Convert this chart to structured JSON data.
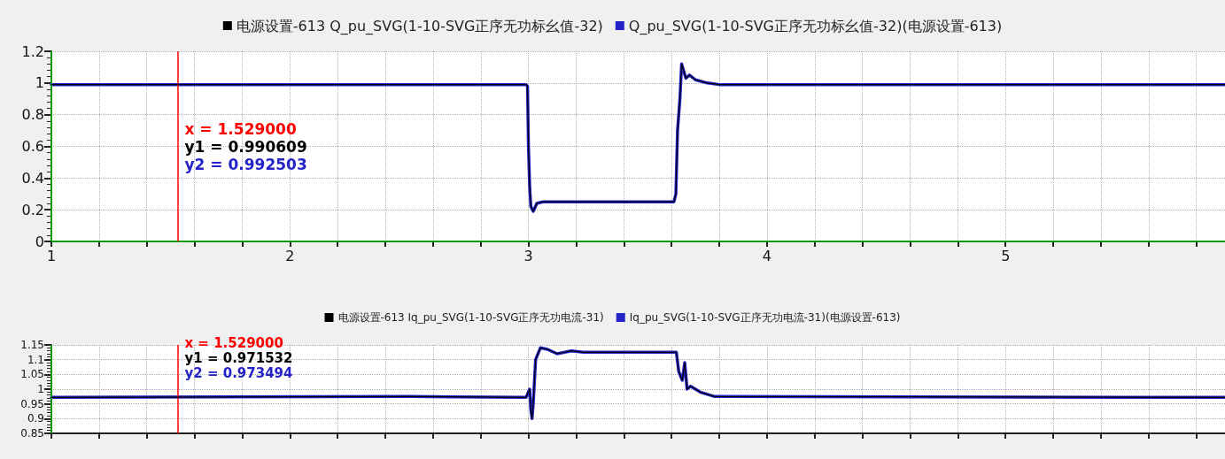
{
  "chart_data": [
    {
      "type": "line",
      "legend": "top",
      "grid": true,
      "marker": "none",
      "line_style": "solid",
      "xlim": [
        1,
        5.92
      ],
      "xticks": [
        1,
        {
          "value": 1.2,
          "label": null
        },
        {
          "value": 1.4,
          "label": null
        },
        {
          "value": 1.6,
          "label": null
        },
        {
          "value": 1.8,
          "label": null
        },
        2,
        {
          "value": 2.2,
          "label": null
        },
        {
          "value": 2.4,
          "label": null
        },
        {
          "value": 2.6,
          "label": null
        },
        {
          "value": 2.8,
          "label": null
        },
        3,
        {
          "value": 3.2,
          "label": null
        },
        {
          "value": 3.4,
          "label": null
        },
        {
          "value": 3.6,
          "label": null
        },
        {
          "value": 3.8,
          "label": null
        },
        4,
        {
          "value": 4.2,
          "label": null
        },
        {
          "value": 4.4,
          "label": null
        },
        {
          "value": 4.6,
          "label": null
        },
        {
          "value": 4.8,
          "label": null
        },
        5,
        {
          "value": 5.2,
          "label": null
        },
        {
          "value": 5.4,
          "label": null
        },
        {
          "value": 5.6,
          "label": null
        },
        {
          "value": 5.8,
          "label": null
        }
      ],
      "ylim": [
        0,
        1.2
      ],
      "yticks": [
        0,
        0.2,
        0.4,
        0.6,
        0.8,
        1,
        1.2
      ],
      "x": [
        1,
        2.99,
        2.996,
        3.0,
        3.005,
        3.01,
        3.02,
        3.035,
        3.06,
        3.61,
        3.618,
        3.625,
        3.635,
        3.642,
        3.65,
        3.66,
        3.675,
        3.7,
        3.75,
        3.8,
        5.92
      ],
      "series": [
        {
          "name": "电源设置-613 Q_pu_SVG(1-10-SVG正序无功标幺值-32)",
          "color": "#000000",
          "values": [
            0.99,
            0.99,
            0.98,
            0.6,
            0.35,
            0.22,
            0.19,
            0.24,
            0.25,
            0.25,
            0.3,
            0.7,
            0.9,
            1.12,
            1.08,
            1.03,
            1.05,
            1.02,
            1.0,
            0.99,
            0.99
          ]
        },
        {
          "name": "Q_pu_SVG(1-10-SVG正序无功标幺值-32)(电源设置-613)",
          "color": "#2323c8",
          "values": [
            0.99,
            0.99,
            0.98,
            0.6,
            0.35,
            0.22,
            0.19,
            0.24,
            0.25,
            0.25,
            0.3,
            0.7,
            0.9,
            1.12,
            1.08,
            1.03,
            1.05,
            1.02,
            1.0,
            0.99,
            0.99
          ]
        }
      ],
      "ref_lines": [
        {
          "axis": "x",
          "value": 1,
          "label": null,
          "color": "#00c000"
        },
        {
          "axis": "y",
          "value": 0,
          "label": null,
          "color": "#00c000"
        },
        {
          "axis": "x",
          "value": 1.529,
          "label": "x = 1.529000",
          "color": "#ff0000"
        }
      ],
      "annotations": [
        "y1 = 0.990609",
        "y2 = 0.992503"
      ]
    },
    {
      "type": "line",
      "legend": "top",
      "grid": true,
      "marker": "none",
      "line_style": "solid",
      "tick_labels": "y",
      "xlim": [
        1,
        5.92
      ],
      "xticks": [
        {
          "value": 1,
          "label": null
        },
        {
          "value": 1.2,
          "label": null
        },
        {
          "value": 1.4,
          "label": null
        },
        {
          "value": 1.6,
          "label": null
        },
        {
          "value": 1.8,
          "label": null
        },
        {
          "value": 2,
          "label": null
        },
        {
          "value": 2.2,
          "label": null
        },
        {
          "value": 2.4,
          "label": null
        },
        {
          "value": 2.6,
          "label": null
        },
        {
          "value": 2.8,
          "label": null
        },
        {
          "value": 3,
          "label": null
        },
        {
          "value": 3.2,
          "label": null
        },
        {
          "value": 3.4,
          "label": null
        },
        {
          "value": 3.6,
          "label": null
        },
        {
          "value": 3.8,
          "label": null
        },
        {
          "value": 4,
          "label": null
        },
        {
          "value": 4.2,
          "label": null
        },
        {
          "value": 4.4,
          "label": null
        },
        {
          "value": 4.6,
          "label": null
        },
        {
          "value": 4.8,
          "label": null
        },
        {
          "value": 5,
          "label": null
        },
        {
          "value": 5.2,
          "label": null
        },
        {
          "value": 5.4,
          "label": null
        },
        {
          "value": 5.6,
          "label": null
        },
        {
          "value": 5.8,
          "label": null
        }
      ],
      "ylim": [
        0.85,
        1.15
      ],
      "yticks": [
        0.85,
        0.9,
        0.95,
        1,
        1.05,
        1.1,
        1.15
      ],
      "x": [
        1,
        2.5,
        2.99,
        3.005,
        3.01,
        3.015,
        3.02,
        3.03,
        3.05,
        3.08,
        3.12,
        3.18,
        3.23,
        3.62,
        3.63,
        3.645,
        3.655,
        3.665,
        3.68,
        3.72,
        3.78,
        5.92
      ],
      "series": [
        {
          "name": "电源设置-613 Iq_pu_SVG(1-10-SVG正序无功电流-31)",
          "color": "#000000",
          "values": [
            0.972,
            0.975,
            0.972,
            1.0,
            0.93,
            0.9,
            0.95,
            1.1,
            1.14,
            1.135,
            1.12,
            1.13,
            1.125,
            1.125,
            1.06,
            1.03,
            1.09,
            1.0,
            1.01,
            0.99,
            0.975,
            0.972
          ]
        },
        {
          "name": "Iq_pu_SVG(1-10-SVG正序无功电流-31)(电源设置-613)",
          "color": "#2323c8",
          "values": [
            0.972,
            0.975,
            0.972,
            1.0,
            0.93,
            0.9,
            0.95,
            1.1,
            1.14,
            1.135,
            1.12,
            1.13,
            1.125,
            1.125,
            1.06,
            1.03,
            1.09,
            1.0,
            1.01,
            0.99,
            0.975,
            0.972
          ]
        }
      ],
      "ref_lines": [
        {
          "axis": "x",
          "value": 1,
          "label": null,
          "color": "#00c000"
        },
        {
          "axis": "x",
          "value": 1.529,
          "label": "x = 1.529000",
          "color": "#ff0000"
        }
      ],
      "annotations": [
        "y1 = 0.971532",
        "y2 = 0.973494"
      ]
    }
  ]
}
